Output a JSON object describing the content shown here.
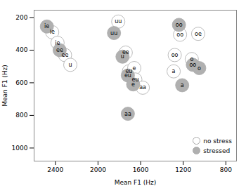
{
  "chart_data": {
    "type": "scatter",
    "xlabel": "Mean F1 (Hz)",
    "ylabel": "Mean F1 (Hz)",
    "xlim": [
      2600,
      700
    ],
    "ylim": [
      1080,
      155
    ],
    "xticks": [
      2400,
      2000,
      1600,
      1200,
      800
    ],
    "yticks": [
      200,
      400,
      600,
      800,
      1000
    ],
    "grid": false,
    "legend": "lower right",
    "series": [
      {
        "name": "no stress",
        "color": "#ffffff",
        "marker": "circle",
        "labels": [
          "ie",
          "ie",
          "ee",
          "u",
          "uu",
          "ee",
          "eu",
          "e",
          "eu",
          "aa",
          "oo",
          "o",
          "a",
          "oo",
          "oe"
        ],
        "x": [
          2430,
          2380,
          2310,
          2260,
          1810,
          1740,
          1710,
          1660,
          1650,
          1580,
          1280,
          1120,
          1290,
          1230,
          1060
        ],
        "values": [
          290,
          355,
          430,
          490,
          225,
          415,
          530,
          510,
          580,
          630,
          430,
          455,
          530,
          305,
          300
        ]
      },
      {
        "name": "stressed",
        "color": "#b0b0b0",
        "marker": "circle",
        "labels": [
          "ie",
          "ee",
          "uu",
          "u",
          "eu",
          "e",
          "aa",
          "a",
          "oo",
          "o",
          "oo"
        ],
        "x": [
          2480,
          2360,
          1850,
          1770,
          1720,
          1670,
          1720,
          1210,
          1110,
          1050,
          1240
        ],
        "values": [
          255,
          400,
          295,
          440,
          555,
          610,
          790,
          615,
          490,
          510,
          245
        ]
      }
    ]
  }
}
